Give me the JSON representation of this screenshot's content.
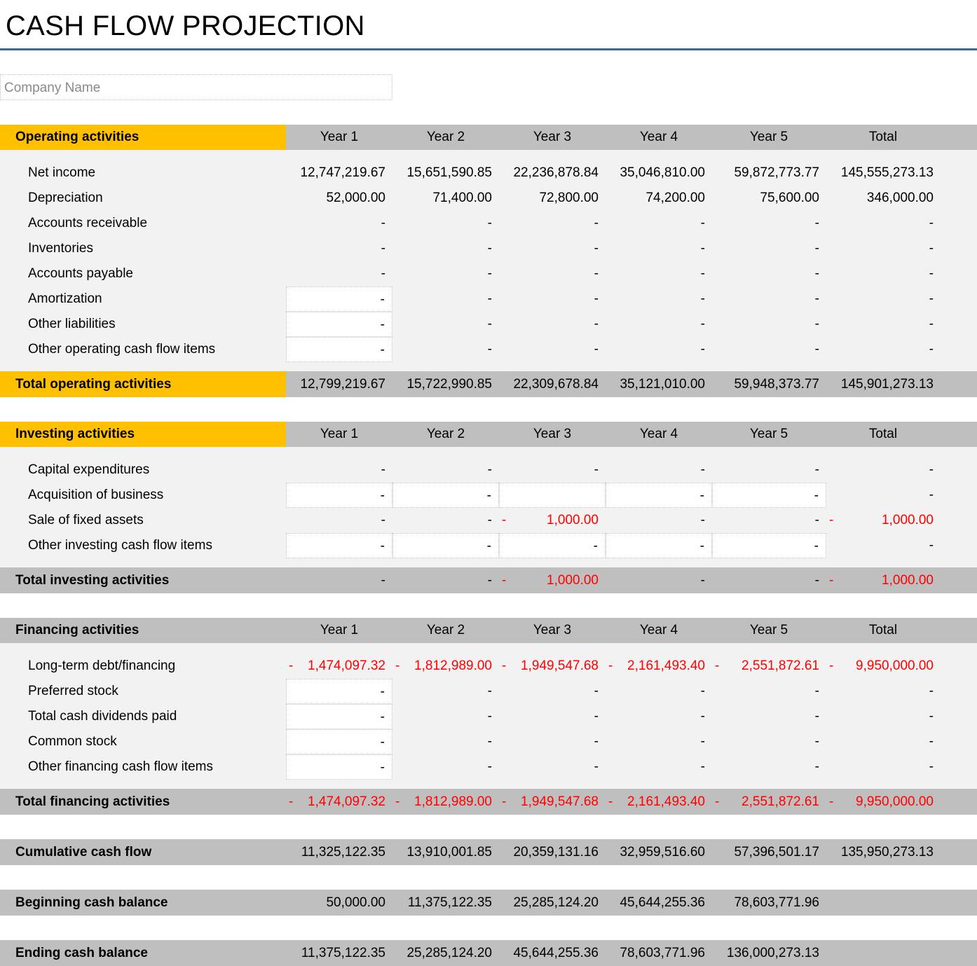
{
  "title": "CASH FLOW PROJECTION",
  "company_placeholder": "Company Name",
  "years": [
    "Year 1",
    "Year 2",
    "Year 3",
    "Year 4",
    "Year 5",
    "Total"
  ],
  "operating": {
    "heading": "Operating activities",
    "rows": [
      {
        "label": "Net income",
        "values": [
          "12,747,219.67",
          "15,651,590.85",
          "22,236,878.84",
          "35,046,810.00",
          "59,872,773.77",
          "145,555,273.13"
        ]
      },
      {
        "label": "Depreciation",
        "values": [
          "52,000.00",
          "71,400.00",
          "72,800.00",
          "74,200.00",
          "75,600.00",
          "346,000.00"
        ]
      },
      {
        "label": "Accounts receivable",
        "values": [
          "-",
          "-",
          "-",
          "-",
          "-",
          "-"
        ]
      },
      {
        "label": "Inventories",
        "values": [
          "-",
          "-",
          "-",
          "-",
          "-",
          "-"
        ]
      },
      {
        "label": "Accounts payable",
        "values": [
          "-",
          "-",
          "-",
          "-",
          "-",
          "-"
        ]
      },
      {
        "label": "Amortization",
        "values": [
          "-",
          "-",
          "-",
          "-",
          "-",
          "-"
        ]
      },
      {
        "label": "Other liabilities",
        "values": [
          "-",
          "-",
          "-",
          "-",
          "-",
          "-"
        ]
      },
      {
        "label": "Other operating cash flow items",
        "values": [
          "-",
          "-",
          "-",
          "-",
          "-",
          "-"
        ]
      }
    ],
    "total_label": "Total operating activities",
    "total_values": [
      "12,799,219.67",
      "15,722,990.85",
      "22,309,678.84",
      "35,121,010.00",
      "59,948,373.77",
      "145,901,273.13"
    ]
  },
  "investing": {
    "heading": "Investing activities",
    "rows": [
      {
        "label": "Capital expenditures",
        "values": [
          "-",
          "-",
          "-",
          "-",
          "-",
          "-"
        ]
      },
      {
        "label": "Acquisition of business",
        "values": [
          "-",
          "-",
          "",
          "-",
          "-",
          "-"
        ]
      },
      {
        "label": "Sale of fixed assets",
        "values": [
          "-",
          "-",
          "1,000.00",
          "-",
          "-",
          "1,000.00"
        ]
      },
      {
        "label": "Other investing cash flow items",
        "values": [
          "-",
          "-",
          "-",
          "-",
          "-",
          "-"
        ]
      }
    ],
    "total_label": "Total investing activities",
    "total_values": [
      "-",
      "-",
      "1,000.00",
      "-",
      "-",
      "1,000.00"
    ]
  },
  "financing": {
    "heading": "Financing activities",
    "rows": [
      {
        "label": "Long-term debt/financing",
        "values": [
          "1,474,097.32",
          "1,812,989.00",
          "1,949,547.68",
          "2,161,493.40",
          "2,551,872.61",
          "9,950,000.00"
        ]
      },
      {
        "label": "Preferred stock",
        "values": [
          "-",
          "-",
          "-",
          "-",
          "-",
          "-"
        ]
      },
      {
        "label": "Total cash dividends paid",
        "values": [
          "-",
          "-",
          "-",
          "-",
          "-",
          "-"
        ]
      },
      {
        "label": "Common stock",
        "values": [
          "-",
          "-",
          "-",
          "-",
          "-",
          "-"
        ]
      },
      {
        "label": "Other financing cash flow items",
        "values": [
          "-",
          "-",
          "-",
          "-",
          "-",
          "-"
        ]
      }
    ],
    "total_label": "Total financing activities",
    "total_values": [
      "1,474,097.32",
      "1,812,989.00",
      "1,949,547.68",
      "2,161,493.40",
      "2,551,872.61",
      "9,950,000.00"
    ]
  },
  "cumulative": {
    "label": "Cumulative cash flow",
    "values": [
      "11,325,122.35",
      "13,910,001.85",
      "20,359,131.16",
      "32,959,516.60",
      "57,396,501.17",
      "135,950,273.13"
    ]
  },
  "beginning": {
    "label": "Beginning cash balance",
    "values": [
      "50,000.00",
      "11,375,122.35",
      "25,285,124.20",
      "45,644,255.36",
      "78,603,771.96",
      ""
    ]
  },
  "ending": {
    "label": "Ending cash balance",
    "values": [
      "11,375,122.35",
      "25,285,124.20",
      "45,644,255.36",
      "78,603,771.96",
      "136,000,273.13",
      ""
    ]
  },
  "negative_sign": "-",
  "colors": {
    "accent_yellow": "#ffc000",
    "header_gray": "#bfbfbf",
    "body_gray": "#f2f2f2",
    "negative_red": "#ff0000",
    "title_rule": "#3f6797"
  }
}
